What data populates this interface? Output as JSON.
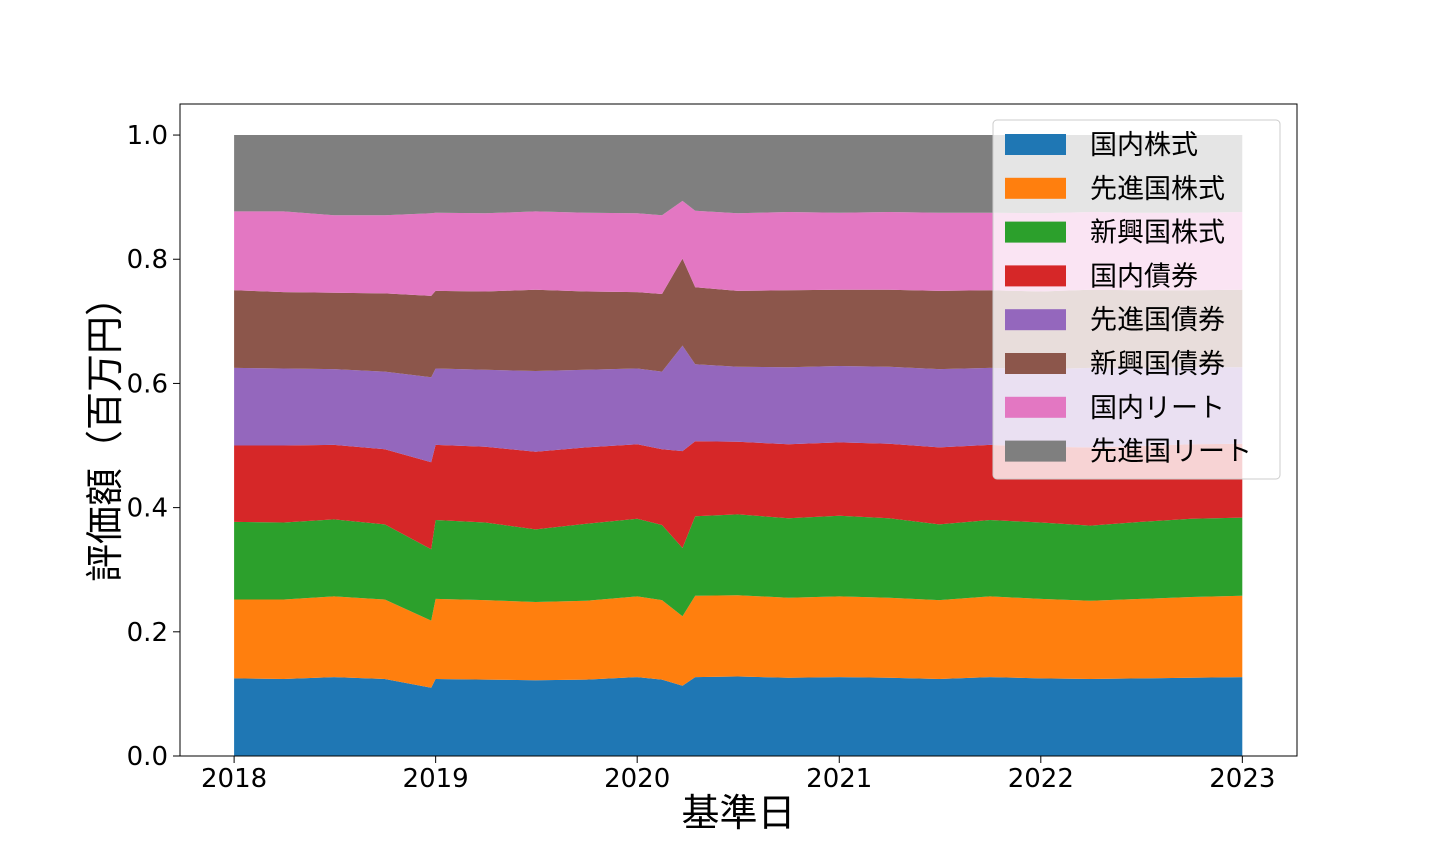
{
  "chart_data": {
    "type": "area",
    "stacked": true,
    "xlabel": "基準日",
    "ylabel": "評価額（百万円）",
    "xlim": [
      "2017-09-25",
      "2023-04-10"
    ],
    "ylim": [
      0,
      1.05
    ],
    "x_ticks": [
      "2018",
      "2019",
      "2020",
      "2021",
      "2022",
      "2023"
    ],
    "y_ticks": [
      "0.0",
      "0.2",
      "0.4",
      "0.6",
      "0.8",
      "1.0"
    ],
    "legend_position": "top-right",
    "grid": false,
    "x": [
      "2018-01-01",
      "2018-04-01",
      "2018-07-01",
      "2018-10-01",
      "2018-12-24",
      "2019-01-01",
      "2019-04-01",
      "2019-07-01",
      "2019-10-01",
      "2020-01-01",
      "2020-02-15",
      "2020-03-23",
      "2020-04-15",
      "2020-07-01",
      "2020-10-01",
      "2021-01-01",
      "2021-04-01",
      "2021-07-01",
      "2021-10-01",
      "2022-01-01",
      "2022-04-01",
      "2022-07-01",
      "2022-10-01",
      "2023-01-01"
    ],
    "series": [
      {
        "name": "国内株式",
        "color": "#1f77b4",
        "values": [
          0.125,
          0.124,
          0.127,
          0.124,
          0.11,
          0.124,
          0.123,
          0.122,
          0.123,
          0.127,
          0.123,
          0.113,
          0.127,
          0.128,
          0.126,
          0.127,
          0.126,
          0.124,
          0.127,
          0.125,
          0.124,
          0.125,
          0.126,
          0.127
        ]
      },
      {
        "name": "先進国株式",
        "color": "#ff7f0e",
        "values": [
          0.127,
          0.128,
          0.13,
          0.128,
          0.108,
          0.129,
          0.128,
          0.126,
          0.127,
          0.13,
          0.128,
          0.112,
          0.131,
          0.131,
          0.129,
          0.13,
          0.129,
          0.127,
          0.13,
          0.128,
          0.126,
          0.128,
          0.13,
          0.131
        ]
      },
      {
        "name": "新興国株式",
        "color": "#2ca02c",
        "values": [
          0.125,
          0.124,
          0.124,
          0.121,
          0.115,
          0.127,
          0.125,
          0.117,
          0.124,
          0.125,
          0.121,
          0.11,
          0.128,
          0.13,
          0.128,
          0.13,
          0.128,
          0.122,
          0.123,
          0.123,
          0.121,
          0.124,
          0.126,
          0.126
        ]
      },
      {
        "name": "国内債券",
        "color": "#d62728",
        "values": [
          0.123,
          0.124,
          0.12,
          0.121,
          0.14,
          0.121,
          0.122,
          0.125,
          0.123,
          0.12,
          0.122,
          0.156,
          0.121,
          0.117,
          0.119,
          0.118,
          0.12,
          0.124,
          0.121,
          0.122,
          0.126,
          0.122,
          0.12,
          0.119
        ]
      },
      {
        "name": "先進国債券",
        "color": "#9467bd",
        "values": [
          0.125,
          0.124,
          0.122,
          0.125,
          0.137,
          0.123,
          0.124,
          0.13,
          0.125,
          0.122,
          0.125,
          0.17,
          0.124,
          0.121,
          0.124,
          0.123,
          0.124,
          0.126,
          0.124,
          0.125,
          0.128,
          0.126,
          0.124,
          0.123
        ]
      },
      {
        "name": "新興国債券",
        "color": "#8c564b",
        "values": [
          0.125,
          0.123,
          0.123,
          0.126,
          0.131,
          0.125,
          0.126,
          0.131,
          0.126,
          0.123,
          0.125,
          0.14,
          0.124,
          0.122,
          0.124,
          0.123,
          0.124,
          0.126,
          0.125,
          0.125,
          0.126,
          0.125,
          0.124,
          0.125
        ]
      },
      {
        "name": "国内リート",
        "color": "#e377c2",
        "values": [
          0.127,
          0.13,
          0.125,
          0.126,
          0.133,
          0.126,
          0.126,
          0.126,
          0.127,
          0.127,
          0.127,
          0.093,
          0.123,
          0.125,
          0.126,
          0.124,
          0.125,
          0.126,
          0.125,
          0.126,
          0.125,
          0.125,
          0.125,
          0.125
        ]
      },
      {
        "name": "先進国リート",
        "color": "#7f7f7f",
        "values": [
          0.123,
          0.123,
          0.129,
          0.129,
          0.126,
          0.125,
          0.126,
          0.123,
          0.125,
          0.126,
          0.129,
          0.106,
          0.122,
          0.126,
          0.124,
          0.125,
          0.124,
          0.125,
          0.125,
          0.126,
          0.124,
          0.125,
          0.125,
          0.124
        ]
      }
    ]
  }
}
